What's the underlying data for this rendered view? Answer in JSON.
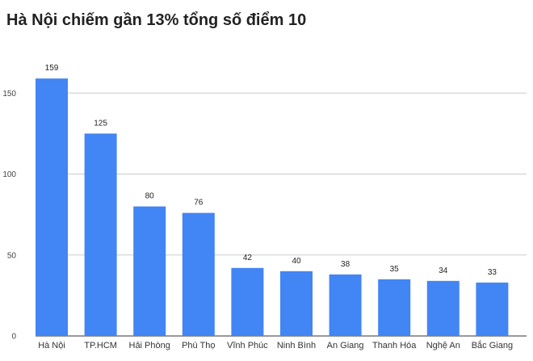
{
  "chart_data": {
    "type": "bar",
    "title": "Hà Nội chiếm gần 13% tổng số điểm 10",
    "categories": [
      "Hà Nội",
      "TP.HCM",
      "Hải Phòng",
      "Phú Thọ",
      "Vĩnh Phúc",
      "Ninh Bình",
      "An Giang",
      "Thanh Hóa",
      "Nghệ An",
      "Bắc Giang"
    ],
    "values": [
      159,
      125,
      80,
      76,
      42,
      40,
      38,
      35,
      34,
      33
    ],
    "xlabel": "",
    "ylabel": "",
    "ylim": [
      0,
      165
    ],
    "yticks": [
      0,
      50,
      100,
      150
    ],
    "grid": true,
    "bar_color": "#4285f4",
    "grid_color": "#cccccc"
  }
}
